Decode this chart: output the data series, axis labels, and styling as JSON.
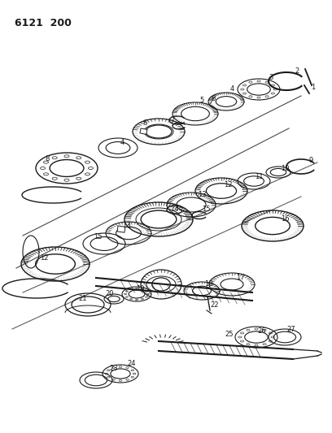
{
  "title": "6121  200",
  "bg": "#ffffff",
  "lc": "#1a1a1a",
  "figsize": [
    4.08,
    5.33
  ],
  "dpi": 100
}
